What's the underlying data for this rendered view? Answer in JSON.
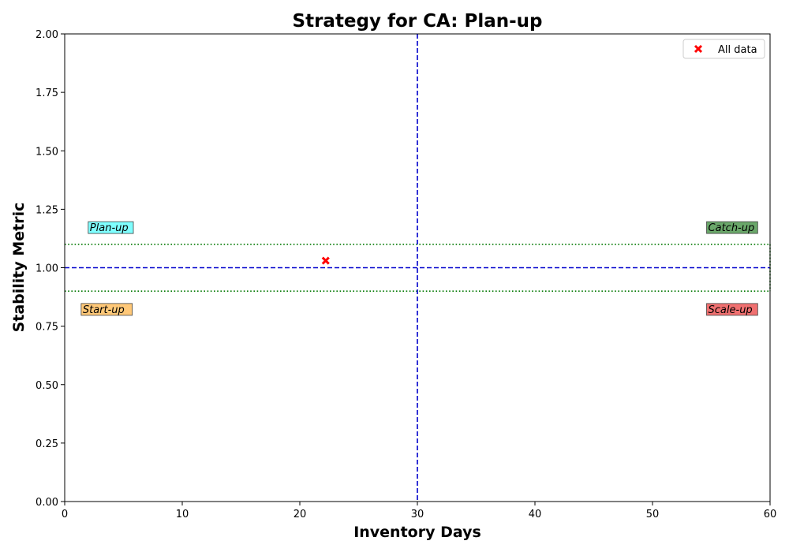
{
  "chart_data": {
    "type": "scatter",
    "title": "Strategy for CA: Plan-up",
    "xlabel": "Inventory Days",
    "ylabel": "Stability Metric",
    "xlim": [
      0,
      60
    ],
    "ylim": [
      0,
      2.0
    ],
    "xticks": [
      0,
      10,
      20,
      30,
      40,
      50,
      60
    ],
    "yticks": [
      "0.00",
      "0.25",
      "0.50",
      "0.75",
      "1.00",
      "1.25",
      "1.50",
      "1.75",
      "2.00"
    ],
    "grid": false,
    "legend_position": "top-right",
    "series": [
      {
        "name": "All data",
        "x": [
          22.2
        ],
        "y": [
          1.03
        ],
        "color": "#ff0000",
        "marker": "x"
      }
    ],
    "reference_lines": {
      "vertical_x": 30,
      "horizontal_y": 1.0,
      "band": [
        0.9,
        1.1
      ],
      "main_color": "#0000cc",
      "band_color": "#007700"
    },
    "quadrant_labels": [
      {
        "text": "Plan-up",
        "x": 2.0,
        "y": 1.17,
        "color": "#7fffff"
      },
      {
        "text": "Catch-up",
        "x": 54.6,
        "y": 1.17,
        "color": "#6aa76a"
      },
      {
        "text": "Start-up",
        "x": 1.4,
        "y": 0.82,
        "color": "#ffc878"
      },
      {
        "text": "Scale-up",
        "x": 54.6,
        "y": 0.82,
        "color": "#f07070"
      }
    ]
  }
}
